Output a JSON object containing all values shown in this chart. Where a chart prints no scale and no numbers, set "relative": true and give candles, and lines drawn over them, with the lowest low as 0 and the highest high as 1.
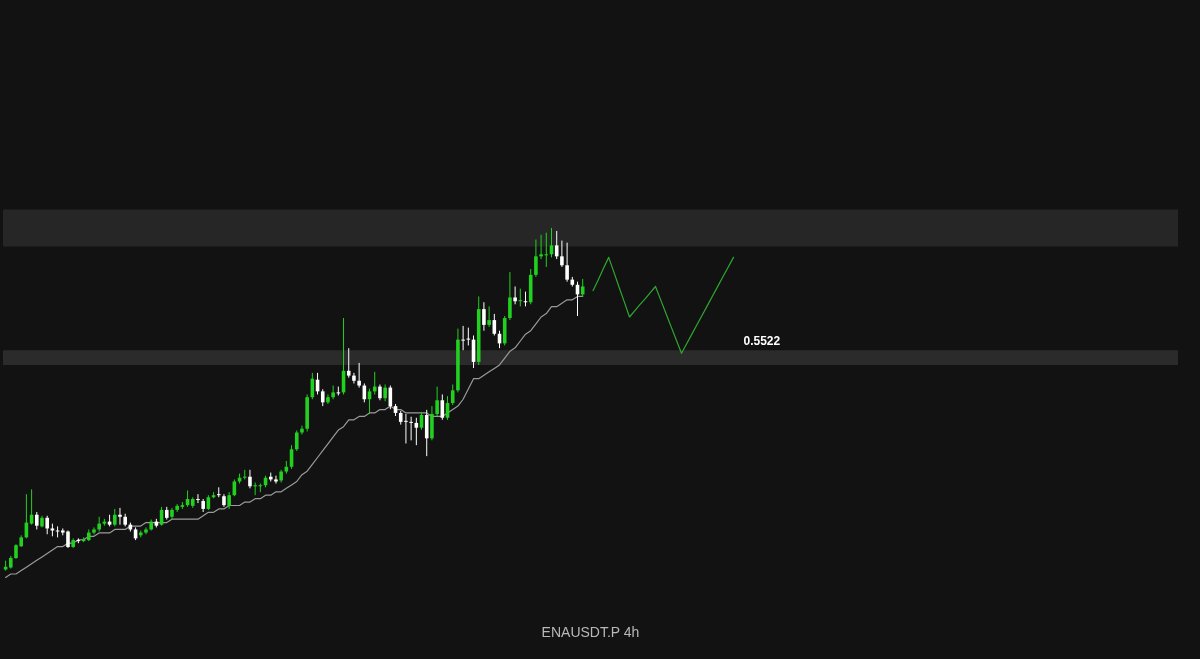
{
  "chart_data": {
    "type": "candlestick",
    "title": "ENAUSDT.P",
    "subtitle": "4h",
    "relative": true,
    "categories": [
      null,
      null,
      null,
      null,
      null,
      null,
      null,
      null,
      null,
      null,
      null,
      null,
      null,
      null,
      null,
      null,
      null,
      null,
      null,
      null,
      null,
      null,
      null,
      null,
      null,
      null,
      null,
      null,
      null,
      null,
      null,
      null,
      null,
      null,
      null,
      null,
      null,
      null,
      null,
      null,
      null,
      null,
      null,
      null,
      null,
      null,
      null,
      null,
      null,
      null,
      null,
      null,
      null,
      null,
      null,
      null,
      null,
      null,
      null,
      null,
      null,
      null,
      null,
      null,
      null,
      null,
      null,
      null,
      null,
      null,
      null,
      null,
      null,
      null,
      null,
      null,
      null,
      null,
      null,
      null,
      null,
      null,
      null,
      null,
      null,
      null,
      null,
      null,
      null,
      null,
      null,
      null,
      null,
      null,
      null,
      null,
      null,
      null,
      null,
      null,
      null,
      null,
      null,
      null,
      null,
      null,
      null,
      null,
      null,
      null,
      null,
      null,
      null,
      null,
      null,
      null,
      null,
      null,
      null,
      null,
      null,
      null,
      null,
      null,
      null,
      null,
      null,
      null,
      null,
      null,
      null,
      null,
      null,
      null,
      null,
      null,
      null,
      null,
      null,
      null,
      null,
      null,
      null,
      null,
      null,
      null,
      null,
      null,
      null,
      null,
      null,
      null,
      null,
      null,
      null,
      null,
      null,
      null,
      null,
      null,
      null,
      null,
      null,
      null,
      null,
      null,
      null,
      null,
      null,
      null,
      null,
      null,
      null,
      null,
      null,
      null,
      null,
      null,
      null,
      null,
      null,
      null,
      null,
      null,
      null,
      null,
      null,
      null,
      null,
      null,
      null,
      null,
      null,
      null,
      null,
      null,
      null,
      null,
      null,
      null,
      null,
      null,
      null,
      null,
      null,
      null,
      null,
      null,
      null,
      null,
      null,
      null,
      null,
      null,
      null,
      null,
      null,
      null,
      null,
      null,
      null,
      null,
      null,
      null,
      null,
      null
    ],
    "ohlc": [
      [
        0.003,
        0.029,
        0,
        0.011
      ],
      [
        0.009,
        0.043,
        0.006,
        0.037
      ],
      [
        0.037,
        0.077,
        0.034,
        0.074
      ],
      [
        0.071,
        0.103,
        0.069,
        0.097
      ],
      [
        0.097,
        0.223,
        0.094,
        0.14
      ],
      [
        0.137,
        0.237,
        0.134,
        0.163
      ],
      [
        0.163,
        0.171,
        0.12,
        0.131
      ],
      [
        0.129,
        0.16,
        0.126,
        0.154
      ],
      [
        0.154,
        0.16,
        0.106,
        0.123
      ],
      [
        0.123,
        0.137,
        0.1,
        0.117
      ],
      [
        0.117,
        0.129,
        0.097,
        0.114
      ],
      [
        0.117,
        0.123,
        0.103,
        0.111
      ],
      [
        0.114,
        0.117,
        0.066,
        0.069
      ],
      [
        0.069,
        0.094,
        0.066,
        0.089
      ],
      [
        0.089,
        0.094,
        0.08,
        0.086
      ],
      [
        0.086,
        0.097,
        0.083,
        0.091
      ],
      [
        0.089,
        0.12,
        0.086,
        0.111
      ],
      [
        0.111,
        0.126,
        0.106,
        0.12
      ],
      [
        0.12,
        0.157,
        0.114,
        0.137
      ],
      [
        0.137,
        0.151,
        0.131,
        0.143
      ],
      [
        0.143,
        0.163,
        0.129,
        0.134
      ],
      [
        0.134,
        0.18,
        0.129,
        0.163
      ],
      [
        0.163,
        0.183,
        0.134,
        0.157
      ],
      [
        0.157,
        0.166,
        0.129,
        0.134
      ],
      [
        0.134,
        0.14,
        0.114,
        0.12
      ],
      [
        0.12,
        0.126,
        0.089,
        0.094
      ],
      [
        0.103,
        0.117,
        0.097,
        0.111
      ],
      [
        0.111,
        0.126,
        0.106,
        0.12
      ],
      [
        0.12,
        0.149,
        0.117,
        0.143
      ],
      [
        0.143,
        0.151,
        0.126,
        0.131
      ],
      [
        0.134,
        0.186,
        0.131,
        0.177
      ],
      [
        0.177,
        0.186,
        0.149,
        0.154
      ],
      [
        0.157,
        0.183,
        0.151,
        0.177
      ],
      [
        0.177,
        0.194,
        0.171,
        0.189
      ],
      [
        0.186,
        0.2,
        0.18,
        0.191
      ],
      [
        0.191,
        0.234,
        0.186,
        0.209
      ],
      [
        0.189,
        0.214,
        0.183,
        0.209
      ],
      [
        0.209,
        0.223,
        0.197,
        0.206
      ],
      [
        0.203,
        0.209,
        0.171,
        0.18
      ],
      [
        0.18,
        0.22,
        0.177,
        0.214
      ],
      [
        0.214,
        0.229,
        0.211,
        0.22
      ],
      [
        0.223,
        0.243,
        0.214,
        0.22
      ],
      [
        0.217,
        0.223,
        0.186,
        0.191
      ],
      [
        0.189,
        0.229,
        0.18,
        0.22
      ],
      [
        0.22,
        0.266,
        0.217,
        0.26
      ],
      [
        0.26,
        0.283,
        0.254,
        0.271
      ],
      [
        0.271,
        0.294,
        0.266,
        0.274
      ],
      [
        0.274,
        0.294,
        0.24,
        0.246
      ],
      [
        0.246,
        0.257,
        0.22,
        0.249
      ],
      [
        0.246,
        0.254,
        0.229,
        0.249
      ],
      [
        0.249,
        0.277,
        0.243,
        0.271
      ],
      [
        0.274,
        0.286,
        0.26,
        0.266
      ],
      [
        0.266,
        0.277,
        0.254,
        0.26
      ],
      [
        0.263,
        0.294,
        0.257,
        0.289
      ],
      [
        0.289,
        0.32,
        0.283,
        0.303
      ],
      [
        0.303,
        0.366,
        0.297,
        0.354
      ],
      [
        0.354,
        0.409,
        0.349,
        0.403
      ],
      [
        0.403,
        0.423,
        0.397,
        0.414
      ],
      [
        0.414,
        0.514,
        0.406,
        0.506
      ],
      [
        0.506,
        0.577,
        0.5,
        0.56
      ],
      [
        0.557,
        0.577,
        0.514,
        0.523
      ],
      [
        0.523,
        0.529,
        0.48,
        0.491
      ],
      [
        0.491,
        0.514,
        0.486,
        0.506
      ],
      [
        0.506,
        0.54,
        0.5,
        0.52
      ],
      [
        0.52,
        0.537,
        0.511,
        0.517
      ],
      [
        0.52,
        0.737,
        0.514,
        0.583
      ],
      [
        0.583,
        0.649,
        0.563,
        0.569
      ],
      [
        0.569,
        0.577,
        0.546,
        0.554
      ],
      [
        0.554,
        0.606,
        0.534,
        0.54
      ],
      [
        0.54,
        0.546,
        0.491,
        0.5
      ],
      [
        0.5,
        0.531,
        0.457,
        0.523
      ],
      [
        0.523,
        0.58,
        0.514,
        0.537
      ],
      [
        0.537,
        0.543,
        0.497,
        0.503
      ],
      [
        0.503,
        0.543,
        0.494,
        0.534
      ],
      [
        0.534,
        0.54,
        0.471,
        0.48
      ],
      [
        0.48,
        0.486,
        0.451,
        0.46
      ],
      [
        0.46,
        0.466,
        0.426,
        0.434
      ],
      [
        0.437,
        0.457,
        0.371,
        0.434
      ],
      [
        0.434,
        0.449,
        0.38,
        0.431
      ],
      [
        0.431,
        0.446,
        0.366,
        0.417
      ],
      [
        0.417,
        0.463,
        0.411,
        0.454
      ],
      [
        0.454,
        0.469,
        0.334,
        0.386
      ],
      [
        0.386,
        0.48,
        0.38,
        0.457
      ],
      [
        0.457,
        0.537,
        0.451,
        0.497
      ],
      [
        0.497,
        0.514,
        0.44,
        0.446
      ],
      [
        0.446,
        0.509,
        0.44,
        0.489
      ],
      [
        0.489,
        0.543,
        0.483,
        0.526
      ],
      [
        0.526,
        0.706,
        0.52,
        0.674
      ],
      [
        0.674,
        0.714,
        0.643,
        0.671
      ],
      [
        0.677,
        0.709,
        0.657,
        0.674
      ],
      [
        0.674,
        0.686,
        0.591,
        0.609
      ],
      [
        0.609,
        0.8,
        0.6,
        0.763
      ],
      [
        0.763,
        0.783,
        0.7,
        0.717
      ],
      [
        0.717,
        0.771,
        0.711,
        0.731
      ],
      [
        0.731,
        0.749,
        0.686,
        0.691
      ],
      [
        0.691,
        0.7,
        0.649,
        0.663
      ],
      [
        0.663,
        0.743,
        0.657,
        0.737
      ],
      [
        0.737,
        0.871,
        0.731,
        0.797
      ],
      [
        0.797,
        0.829,
        0.777,
        0.786
      ],
      [
        0.786,
        0.823,
        0.771,
        0.789
      ],
      [
        0.786,
        0.814,
        0.771,
        0.783
      ],
      [
        0.783,
        0.88,
        0.777,
        0.863
      ],
      [
        0.863,
        0.966,
        0.857,
        0.917
      ],
      [
        0.917,
        0.98,
        0.909,
        0.923
      ],
      [
        0.92,
        0.986,
        0.886,
        0.923
      ],
      [
        0.923,
        1,
        0.914,
        0.949
      ],
      [
        0.949,
        0.991,
        0.909,
        0.917
      ],
      [
        0.917,
        0.963,
        0.886,
        0.891
      ],
      [
        0.891,
        0.957,
        0.843,
        0.849
      ],
      [
        0.849,
        0.857,
        0.829,
        0.834
      ],
      [
        0.834,
        0.843,
        0.743,
        0.806
      ],
      [
        0.806,
        0.851,
        0.8,
        0.829
      ],
      null,
      null,
      null,
      null,
      null,
      null,
      null,
      null,
      null,
      null,
      null,
      null,
      null,
      null,
      null,
      null,
      null,
      null,
      null,
      null,
      null,
      null,
      null,
      null,
      null,
      null,
      null,
      null,
      null,
      null,
      null,
      null,
      null,
      null,
      null,
      null,
      null,
      null,
      null,
      null,
      null,
      null,
      null,
      null,
      null,
      null,
      null,
      null,
      null,
      null,
      null,
      null,
      null,
      null,
      null,
      null,
      null,
      null,
      null,
      null,
      null,
      null,
      null,
      null,
      null,
      null,
      null,
      null,
      null,
      null,
      null,
      null,
      null,
      null,
      null,
      null,
      null,
      null,
      null,
      null,
      null,
      null,
      null,
      null,
      null,
      null,
      null,
      null,
      null,
      null,
      null,
      null,
      null,
      null,
      null,
      null,
      null,
      null,
      null,
      null,
      null,
      null,
      null,
      null,
      null,
      null,
      null,
      null,
      null,
      null,
      null,
      null,
      null,
      null
    ],
    "colors": [
      "#22d11f",
      "#22d11f",
      "#22d11f",
      "#22d11f",
      "#22d11f",
      "#22d11f",
      "#ffffff",
      "#22d11f",
      "#ffffff",
      "#ffffff",
      "#ffffff",
      "#ffffff",
      "#ffffff",
      "#22d11f",
      "#ffffff",
      "#22d11f",
      "#22d11f",
      "#22d11f",
      "#22d11f",
      "#22d11f",
      "#ffffff",
      "#22d11f",
      "#ffffff",
      "#ffffff",
      "#ffffff",
      "#ffffff",
      "#22d11f",
      "#22d11f",
      "#22d11f",
      "#ffffff",
      "#22d11f",
      "#ffffff",
      "#22d11f",
      "#22d11f",
      "#22d11f",
      "#22d11f",
      "#22d11f",
      "#ffffff",
      "#ffffff",
      "#22d11f",
      "#22d11f",
      "#ffffff",
      "#ffffff",
      "#22d11f",
      "#22d11f",
      "#22d11f",
      "#22d11f",
      "#ffffff",
      "#22d11f",
      "#22d11f",
      "#22d11f",
      "#ffffff",
      "#ffffff",
      "#22d11f",
      "#22d11f",
      "#22d11f",
      "#22d11f",
      "#22d11f",
      "#22d11f",
      "#22d11f",
      "#ffffff",
      "#ffffff",
      "#22d11f",
      "#22d11f",
      "#ffffff",
      "#22d11f",
      "#ffffff",
      "#ffffff",
      "#ffffff",
      "#ffffff",
      "#22d11f",
      "#22d11f",
      "#ffffff",
      "#22d11f",
      "#ffffff",
      "#ffffff",
      "#ffffff",
      "#ffffff",
      "#ffffff",
      "#ffffff",
      "#22d11f",
      "#ffffff",
      "#22d11f",
      "#22d11f",
      "#ffffff",
      "#22d11f",
      "#22d11f",
      "#22d11f",
      "#ffffff",
      "#ffffff",
      "#ffffff",
      "#22d11f",
      "#ffffff",
      "#22d11f",
      "#ffffff",
      "#ffffff",
      "#22d11f",
      "#22d11f",
      "#ffffff",
      "#22d11f",
      "#ffffff",
      "#22d11f",
      "#22d11f",
      "#22d11f",
      "#22d11f",
      "#22d11f",
      "#ffffff",
      "#ffffff",
      "#ffffff",
      "#ffffff",
      "#ffffff",
      "#22d11f",
      null,
      null,
      null,
      null,
      null,
      null,
      null,
      null,
      null,
      null,
      null,
      null,
      null,
      null,
      null,
      null,
      null,
      null,
      null,
      null,
      null,
      null,
      null,
      null,
      null,
      null,
      null,
      null,
      null,
      null,
      null,
      null,
      null,
      null,
      null,
      null,
      null,
      null,
      null,
      null,
      null,
      null,
      null,
      null,
      null,
      null,
      null,
      null,
      null,
      null,
      null,
      null,
      null,
      null,
      null,
      null,
      null,
      null,
      null,
      null,
      null,
      null,
      null,
      null,
      null,
      null,
      null,
      null,
      null,
      null,
      null,
      null,
      null,
      null,
      null,
      null,
      null,
      null,
      null,
      null,
      null,
      null,
      null,
      null,
      null,
      null,
      null,
      null,
      null,
      null,
      null,
      null,
      null,
      null,
      null,
      null,
      null,
      null,
      null,
      null,
      null,
      null,
      null,
      null,
      null,
      null,
      null,
      null,
      null,
      null,
      null,
      null,
      null,
      null
    ],
    "series": [
      {
        "type": "line",
        "color": "#9a9a9a",
        "values": [
          -0.02,
          -0.01,
          -0.01,
          0,
          0.01,
          0.02,
          0.03,
          0.04,
          0.05,
          0.06,
          0.07,
          0.07,
          0.08,
          0.08,
          0.09,
          0.09,
          0.1,
          0.1,
          0.11,
          0.11,
          0.11,
          0.12,
          0.12,
          0.12,
          0.13,
          0.13,
          0.13,
          0.14,
          0.14,
          0.14,
          0.14,
          0.14,
          0.15,
          0.15,
          0.15,
          0.15,
          0.15,
          0.15,
          0.16,
          0.17,
          0.17,
          0.18,
          0.18,
          0.19,
          0.19,
          0.19,
          0.2,
          0.2,
          0.21,
          0.21,
          0.22,
          0.22,
          0.23,
          0.23,
          0.24,
          0.25,
          0.26,
          0.28,
          0.29,
          0.31,
          0.33,
          0.35,
          0.37,
          0.39,
          0.41,
          0.42,
          0.44,
          0.44,
          0.45,
          0.45,
          0.46,
          0.46,
          0.47,
          0.47,
          0.48,
          0.47,
          0.47,
          0.46,
          0.46,
          0.46,
          0.46,
          0.46,
          0.45,
          0.45,
          0.45,
          0.46,
          0.47,
          0.48,
          0.5,
          0.53,
          0.56,
          0.56,
          0.57,
          0.58,
          0.59,
          0.6,
          0.62,
          0.64,
          0.65,
          0.67,
          0.69,
          0.7,
          0.72,
          0.74,
          0.75,
          0.77,
          0.77,
          0.78,
          0.79,
          0.79,
          0.8,
          0.8,
          null,
          null,
          null,
          null,
          null,
          null,
          null,
          null,
          null,
          null,
          null,
          null,
          null,
          null,
          null,
          null,
          null,
          null,
          null,
          null,
          null,
          null,
          null,
          null,
          null,
          null,
          null,
          null,
          null,
          null,
          null,
          null,
          null,
          null,
          null,
          null,
          null,
          null,
          null,
          null,
          null,
          null,
          null,
          null,
          null,
          null,
          null,
          null,
          null,
          null,
          null,
          null,
          null,
          null,
          null,
          null,
          null,
          null,
          null,
          null,
          null,
          null,
          null,
          null,
          null,
          null,
          null,
          null,
          null,
          null,
          null,
          null,
          null,
          null,
          null,
          null,
          null,
          null,
          null,
          null,
          null,
          null,
          null,
          null,
          null,
          null,
          null,
          null,
          null,
          null,
          null,
          null,
          null,
          null,
          null,
          null,
          null,
          null,
          null,
          null,
          null,
          null,
          null,
          null,
          null,
          null,
          null,
          null,
          null,
          null,
          null,
          null,
          null,
          null
        ]
      },
      {
        "type": "line",
        "color": "#2ea82e",
        "values": [
          null,
          null,
          null,
          null,
          null,
          null,
          null,
          null,
          null,
          null,
          null,
          null,
          null,
          null,
          null,
          null,
          null,
          null,
          null,
          null,
          null,
          null,
          null,
          null,
          null,
          null,
          null,
          null,
          null,
          null,
          null,
          null,
          null,
          null,
          null,
          null,
          null,
          null,
          null,
          null,
          null,
          null,
          null,
          null,
          null,
          null,
          null,
          null,
          null,
          null,
          null,
          null,
          null,
          null,
          null,
          null,
          null,
          null,
          null,
          null,
          null,
          null,
          null,
          null,
          null,
          null,
          null,
          null,
          null,
          null,
          null,
          null,
          null,
          null,
          null,
          null,
          null,
          null,
          null,
          null,
          null,
          null,
          null,
          null,
          null,
          null,
          null,
          null,
          null,
          null,
          null,
          null,
          null,
          null,
          null,
          null,
          null,
          null,
          null,
          null,
          null,
          null,
          null,
          null,
          null,
          null,
          null,
          null,
          null,
          null,
          null,
          null,
          null,
          0.817,
          0.849,
          0.882,
          0.914,
          0.871,
          0.827,
          0.784,
          0.74,
          0.758,
          0.776,
          0.793,
          0.811,
          0.829,
          0.79,
          0.751,
          0.712,
          0.673,
          0.634,
          0.662,
          0.69,
          0.718,
          0.746,
          0.774,
          0.802,
          0.83,
          0.858,
          0.886,
          0.914,
          null,
          null,
          null,
          null,
          null,
          null,
          null,
          null,
          null,
          null,
          null,
          null,
          null,
          null,
          null,
          null,
          null,
          null,
          null,
          null,
          null,
          null,
          null,
          null,
          null,
          null,
          null,
          null,
          null,
          null,
          null,
          null,
          null,
          null,
          null,
          null,
          null,
          null,
          null,
          null,
          null,
          null,
          null,
          null,
          null,
          null,
          null,
          null,
          null,
          null,
          null,
          null,
          null,
          null,
          null,
          null,
          null,
          null,
          null,
          null,
          null,
          null,
          null,
          null,
          null,
          null,
          null,
          null,
          null,
          null,
          null,
          null,
          null,
          null,
          null,
          null,
          null,
          null,
          null,
          null,
          null,
          null,
          null,
          null,
          null
        ]
      }
    ],
    "bands": [
      {
        "axis": "y",
        "from": 0.946,
        "to": 1.054,
        "color": "#262626"
      },
      {
        "axis": "y",
        "from": 0.6,
        "to": 0.643,
        "label": "0.5522",
        "color": "#2b2b2b"
      }
    ]
  }
}
